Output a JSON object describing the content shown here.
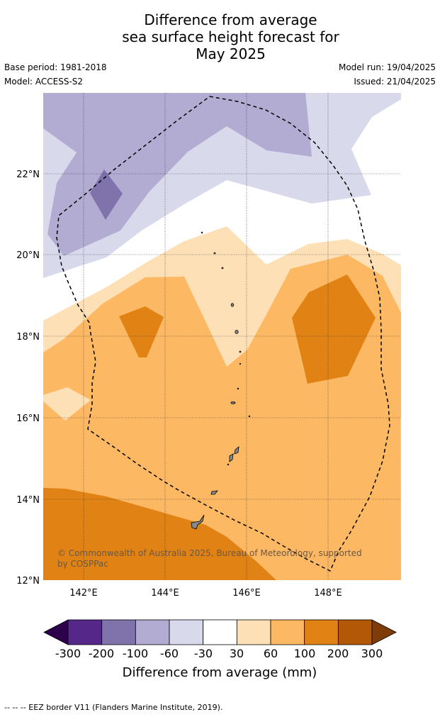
{
  "title": {
    "line1": "Difference from average",
    "line2": "sea surface height forecast for",
    "line3": "May 2025"
  },
  "meta": {
    "base_period": "Base period: 1981-2018",
    "model": "Model: ACCESS-S2",
    "model_run": "Model run: 19/04/2025",
    "issued": "Issued: 21/04/2025"
  },
  "map": {
    "lat_labels": [
      "22°N",
      "20°N",
      "18°N",
      "16°N",
      "14°N",
      "12°N"
    ],
    "lon_labels": [
      "142°E",
      "144°E",
      "146°E",
      "148°E"
    ],
    "copyright_line1": "© Commonwealth of Australia 2025, Bureau of Meteorology, supported",
    "copyright_line2": "by COSPPac"
  },
  "colorbar": {
    "ticks": [
      "-300",
      "-200",
      "-100",
      "-60",
      "-30",
      "30",
      "60",
      "100",
      "200",
      "300"
    ],
    "label": "Difference from average (mm)",
    "colors": [
      "#2d004b",
      "#542788",
      "#8073ac",
      "#b2abd2",
      "#d8daeb",
      "#ffffff",
      "#fee0b6",
      "#fdb863",
      "#e08214",
      "#b35806",
      "#7f3b08"
    ]
  },
  "footer": {
    "eez_note": "--  --  -- EEZ border V11 (Flanders Marine Institute, 2019)."
  }
}
